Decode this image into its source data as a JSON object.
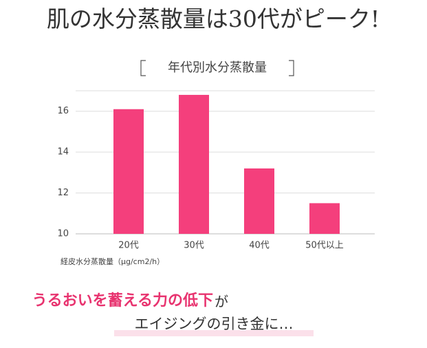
{
  "chart_data": {
    "type": "bar",
    "title": "肌の水分蒸散量は30代がピーク!",
    "subtitle": "年代別水分蒸散量",
    "categories": [
      "20代",
      "30代",
      "40代",
      "50代以上"
    ],
    "values": [
      16.1,
      16.8,
      13.2,
      11.5
    ],
    "color": "#f43f7c",
    "ylim": [
      10,
      17
    ],
    "yticks": [
      10,
      12,
      14,
      16
    ],
    "grid": true,
    "y_axis_label": "経皮水分蒸散量（μg/cm2/h）"
  },
  "message": {
    "highlight": "うるおいを蓄える力の低下",
    "tail": "が",
    "line2": "エイジングの引き金に…"
  }
}
